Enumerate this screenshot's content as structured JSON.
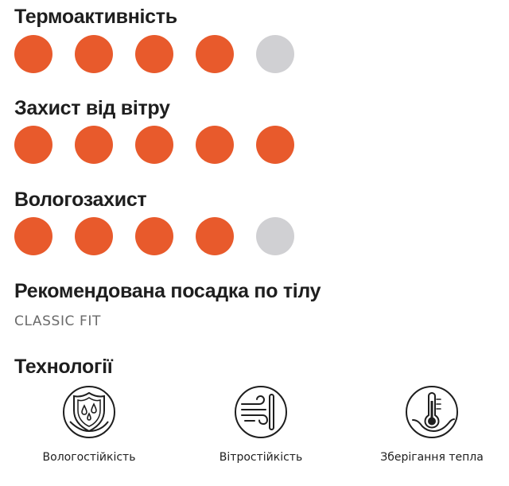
{
  "ratings": [
    {
      "label": "Термоактивність",
      "value": 4,
      "max": 5
    },
    {
      "label": "Захист від вітру",
      "value": 5,
      "max": 5
    },
    {
      "label": "Вологозахист",
      "value": 4,
      "max": 5
    }
  ],
  "fit": {
    "heading": "Рекомендована посадка по тілу",
    "value": "CLASSIC FIT"
  },
  "technologies": {
    "heading": "Технології",
    "items": [
      {
        "icon": "water-repellent-shield-icon",
        "label": "Вологостійкість"
      },
      {
        "icon": "wind-resistance-icon",
        "label": "Вітростійкість"
      },
      {
        "icon": "heat-retention-thermometer-icon",
        "label": "Зберігання тепла"
      }
    ]
  },
  "colors": {
    "dot_active": "#e85a2c",
    "dot_inactive": "#d0d0d3",
    "text": "#1e1e1e",
    "muted": "#6a6a6a"
  }
}
